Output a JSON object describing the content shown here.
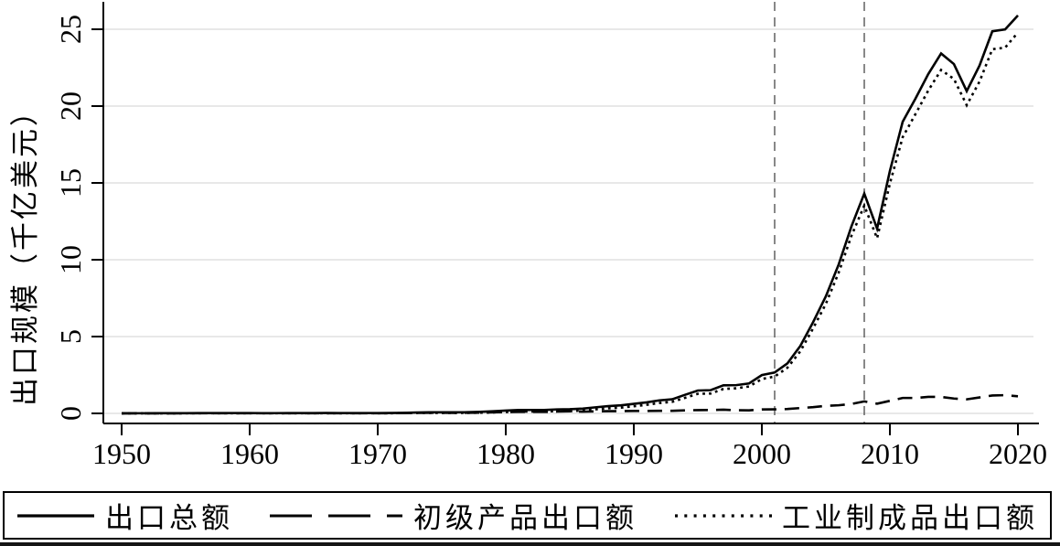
{
  "chart_data": {
    "type": "line",
    "title": "",
    "xlabel": "",
    "ylabel": "出口规模（千亿美元）",
    "x_ticks": [
      1950,
      1960,
      1970,
      1980,
      1990,
      2000,
      2010,
      2020
    ],
    "y_ticks": [
      0,
      5,
      10,
      15,
      20,
      25
    ],
    "xlim": [
      1948.6,
      2021.2
    ],
    "ylim": [
      -0.65,
      26.9
    ],
    "grid": "horizontal",
    "legend_position": "bottom-boxed",
    "colors": {
      "background": "#ffffff",
      "axis": "#000000",
      "grid": "#e0e0e0",
      "reference_line": "#565656",
      "series": "#000000"
    },
    "reference_lines": {
      "orientation": "vertical",
      "style": "dashed",
      "years": [
        2001,
        2008
      ]
    },
    "x": [
      1950,
      1951,
      1952,
      1953,
      1954,
      1955,
      1956,
      1957,
      1958,
      1959,
      1960,
      1961,
      1962,
      1963,
      1964,
      1965,
      1966,
      1967,
      1968,
      1969,
      1970,
      1971,
      1972,
      1973,
      1974,
      1975,
      1976,
      1977,
      1978,
      1979,
      1980,
      1981,
      1982,
      1983,
      1984,
      1985,
      1986,
      1987,
      1988,
      1989,
      1990,
      1991,
      1992,
      1993,
      1994,
      1995,
      1996,
      1997,
      1998,
      1999,
      2000,
      2001,
      2002,
      2003,
      2004,
      2005,
      2006,
      2007,
      2008,
      2009,
      2010,
      2011,
      2012,
      2013,
      2014,
      2015,
      2016,
      2017,
      2018,
      2019,
      2020
    ],
    "series": [
      {
        "name": "出口总额",
        "style": "solid",
        "color": "#000000",
        "values": [
          0.006,
          0.008,
          0.008,
          0.01,
          0.012,
          0.014,
          0.017,
          0.016,
          0.02,
          0.023,
          0.019,
          0.015,
          0.015,
          0.017,
          0.019,
          0.022,
          0.024,
          0.021,
          0.021,
          0.022,
          0.023,
          0.026,
          0.034,
          0.058,
          0.07,
          0.073,
          0.069,
          0.076,
          0.098,
          0.137,
          0.181,
          0.22,
          0.223,
          0.222,
          0.261,
          0.274,
          0.309,
          0.394,
          0.475,
          0.525,
          0.621,
          0.718,
          0.849,
          0.917,
          1.21,
          1.488,
          1.511,
          1.828,
          1.838,
          1.949,
          2.492,
          2.661,
          3.256,
          4.384,
          5.934,
          7.62,
          9.691,
          12.178,
          14.307,
          12.027,
          15.778,
          18.984,
          20.489,
          22.09,
          23.423,
          22.735,
          20.976,
          22.634,
          24.867,
          24.99,
          25.901
        ]
      },
      {
        "name": "初级产品出口额",
        "style": "long-dash",
        "color": "#000000",
        "values": [
          0.003,
          0.004,
          0.004,
          0.005,
          0.006,
          0.007,
          0.008,
          0.008,
          0.009,
          0.01,
          0.008,
          0.007,
          0.007,
          0.008,
          0.009,
          0.011,
          0.011,
          0.01,
          0.01,
          0.011,
          0.011,
          0.013,
          0.017,
          0.031,
          0.037,
          0.039,
          0.035,
          0.04,
          0.052,
          0.073,
          0.091,
          0.102,
          0.1,
          0.096,
          0.119,
          0.138,
          0.112,
          0.132,
          0.144,
          0.15,
          0.159,
          0.161,
          0.17,
          0.166,
          0.197,
          0.215,
          0.219,
          0.239,
          0.206,
          0.199,
          0.255,
          0.263,
          0.285,
          0.348,
          0.405,
          0.49,
          0.529,
          0.615,
          0.78,
          0.631,
          0.817,
          1.005,
          1.005,
          1.073,
          1.072,
          0.967,
          0.916,
          1.039,
          1.166,
          1.186,
          1.112
        ]
      },
      {
        "name": "工业制成品出口额",
        "style": "dotted",
        "color": "#000000",
        "values": [
          0.003,
          0.004,
          0.004,
          0.005,
          0.006,
          0.007,
          0.009,
          0.008,
          0.011,
          0.013,
          0.011,
          0.008,
          0.008,
          0.009,
          0.01,
          0.011,
          0.013,
          0.011,
          0.011,
          0.011,
          0.012,
          0.013,
          0.017,
          0.027,
          0.033,
          0.034,
          0.034,
          0.036,
          0.046,
          0.064,
          0.09,
          0.118,
          0.123,
          0.126,
          0.142,
          0.136,
          0.197,
          0.262,
          0.331,
          0.375,
          0.462,
          0.557,
          0.679,
          0.751,
          1.013,
          1.273,
          1.292,
          1.589,
          1.632,
          1.75,
          2.237,
          2.398,
          2.971,
          4.036,
          5.529,
          7.13,
          9.162,
          11.563,
          13.527,
          11.396,
          14.961,
          17.979,
          19.484,
          21.017,
          22.351,
          21.768,
          20.06,
          21.595,
          23.701,
          23.804,
          24.789
        ]
      }
    ]
  }
}
